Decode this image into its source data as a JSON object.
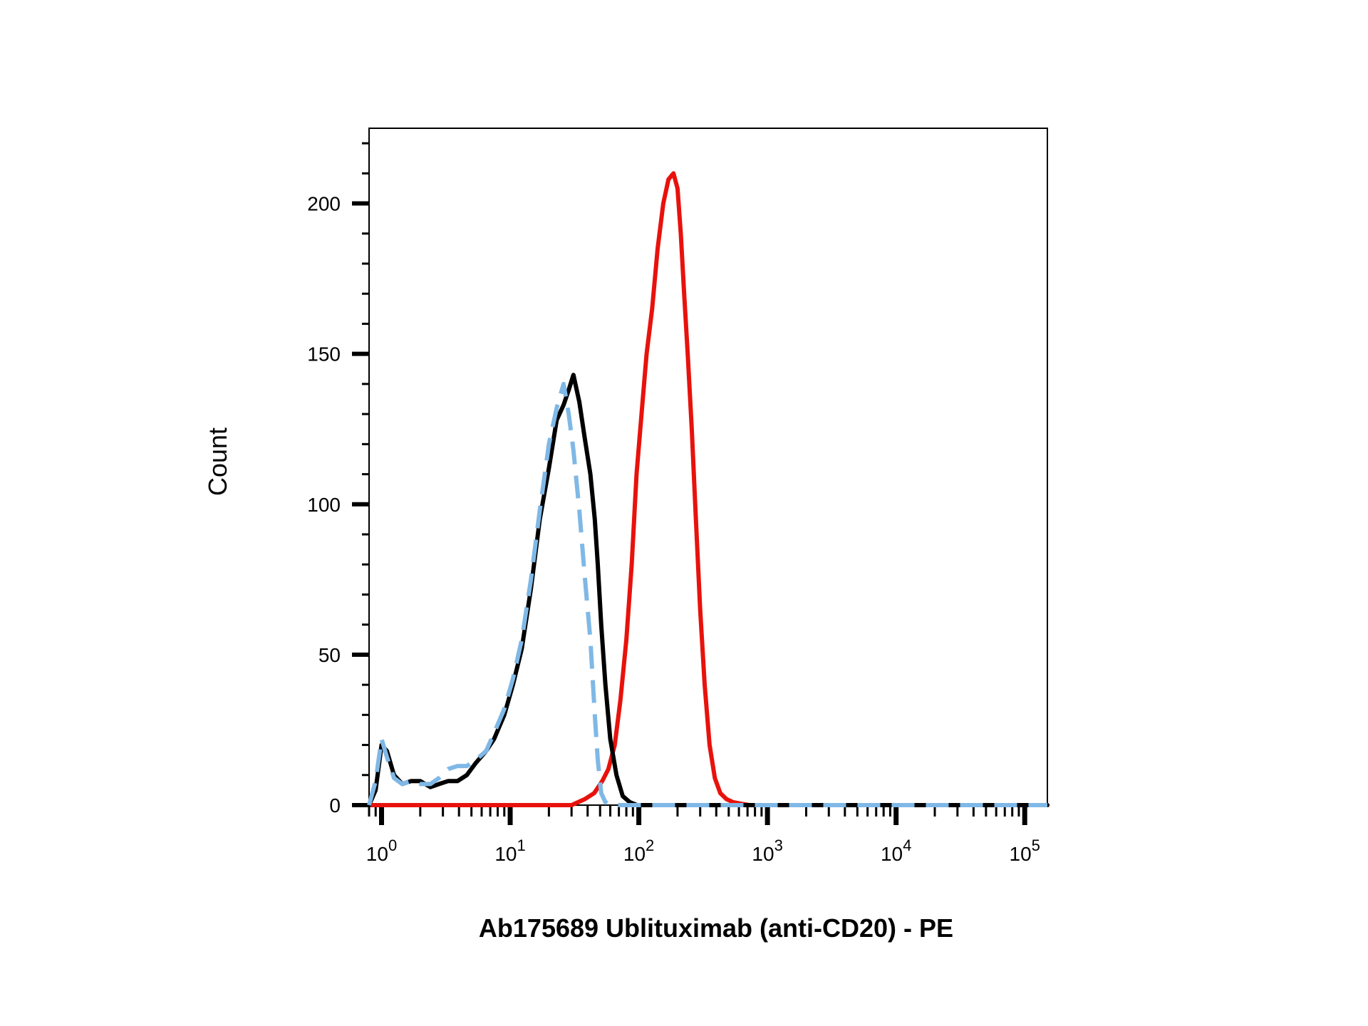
{
  "chart_data": {
    "type": "line",
    "title": "",
    "xlabel": "Ab175689 Ublituximab (anti-CD20) - PE",
    "ylabel": "Count",
    "x_scale": "log",
    "xlim": [
      0.8,
      150000
    ],
    "ylim": [
      0,
      225
    ],
    "y_ticks": [
      0,
      50,
      100,
      150,
      200
    ],
    "x_ticks": [
      {
        "value": 1,
        "base": "10",
        "exp": "0"
      },
      {
        "value": 10,
        "base": "10",
        "exp": "1"
      },
      {
        "value": 100,
        "base": "10",
        "exp": "2"
      },
      {
        "value": 1000,
        "base": "10",
        "exp": "3"
      },
      {
        "value": 10000,
        "base": "10",
        "exp": "4"
      },
      {
        "value": 100000,
        "base": "10",
        "exp": "5"
      }
    ],
    "grid": false,
    "legend": "none",
    "series": [
      {
        "color": "#000000",
        "style": "solid",
        "x": [
          0.8,
          0.9,
          1.0,
          1.1,
          1.25,
          1.45,
          1.7,
          2.0,
          2.4,
          2.8,
          3.3,
          3.9,
          4.6,
          5.4,
          6.5,
          7.5,
          9.0,
          10.5,
          12.3,
          14.5,
          17.0,
          20.0,
          23.0,
          26.0,
          28.5,
          31.0,
          34.5,
          38.0,
          42.0,
          45.5,
          48.0,
          51.0,
          55.0,
          60.0,
          67.0,
          75.0,
          85.0,
          97.0,
          110.0,
          125.0,
          140.0,
          160.0,
          200.0,
          300.0,
          1000.0,
          150000.0
        ],
        "y": [
          0,
          5,
          20,
          18,
          10,
          7,
          8,
          8,
          6,
          7,
          8,
          8,
          10,
          14,
          18,
          22,
          30,
          40,
          52,
          72,
          95,
          112,
          128,
          133,
          138,
          143,
          134,
          122,
          110,
          95,
          80,
          60,
          40,
          22,
          10,
          3,
          1,
          0,
          0,
          0,
          0,
          0,
          0,
          0,
          0,
          0
        ]
      },
      {
        "color": "#7fb8e6",
        "style": "dashed",
        "x": [
          0.8,
          0.9,
          1.0,
          1.1,
          1.25,
          1.45,
          1.7,
          2.0,
          2.4,
          2.8,
          3.3,
          3.9,
          4.6,
          5.4,
          6.5,
          7.5,
          9.0,
          10.5,
          12.3,
          14.5,
          17.0,
          20.0,
          23.0,
          26.0,
          28.5,
          31.0,
          34.5,
          38.0,
          42.0,
          45.5,
          48.0,
          51.0,
          55.0,
          60.0,
          67.0,
          75.0,
          85.0,
          97.0,
          110.0,
          125.0,
          140.0,
          160.0,
          200.0,
          300.0,
          1000.0,
          150000.0
        ],
        "y": [
          0,
          8,
          22,
          16,
          9,
          7,
          8,
          7,
          7,
          9,
          12,
          13,
          13,
          15,
          18,
          24,
          32,
          42,
          55,
          75,
          98,
          120,
          132,
          140,
          130,
          118,
          98,
          76,
          55,
          30,
          15,
          4,
          1,
          0,
          0,
          0,
          0,
          0,
          0,
          0,
          0,
          0,
          0,
          0,
          0,
          0
        ]
      },
      {
        "color": "#e8120c",
        "style": "solid",
        "x": [
          0.8,
          10.0,
          20.0,
          30.0,
          38.0,
          45.0,
          52.0,
          58.0,
          65.0,
          72.0,
          80.0,
          88.0,
          96.0,
          105.0,
          115.0,
          127.0,
          140.0,
          155.0,
          170.0,
          186.0,
          200.0,
          212.0,
          225.0,
          240.0,
          258.0,
          278.0,
          300.0,
          325.0,
          355.0,
          390.0,
          430.0,
          480.0,
          540.0,
          620.0,
          720.0,
          850.0,
          1000.0,
          150000.0
        ],
        "y": [
          0,
          0,
          0,
          0,
          2,
          4,
          8,
          12,
          20,
          35,
          55,
          80,
          110,
          130,
          150,
          165,
          185,
          200,
          208,
          210,
          205,
          190,
          170,
          150,
          125,
          95,
          65,
          40,
          20,
          9,
          4,
          2,
          1,
          0.5,
          0,
          0,
          0,
          0
        ]
      }
    ]
  }
}
